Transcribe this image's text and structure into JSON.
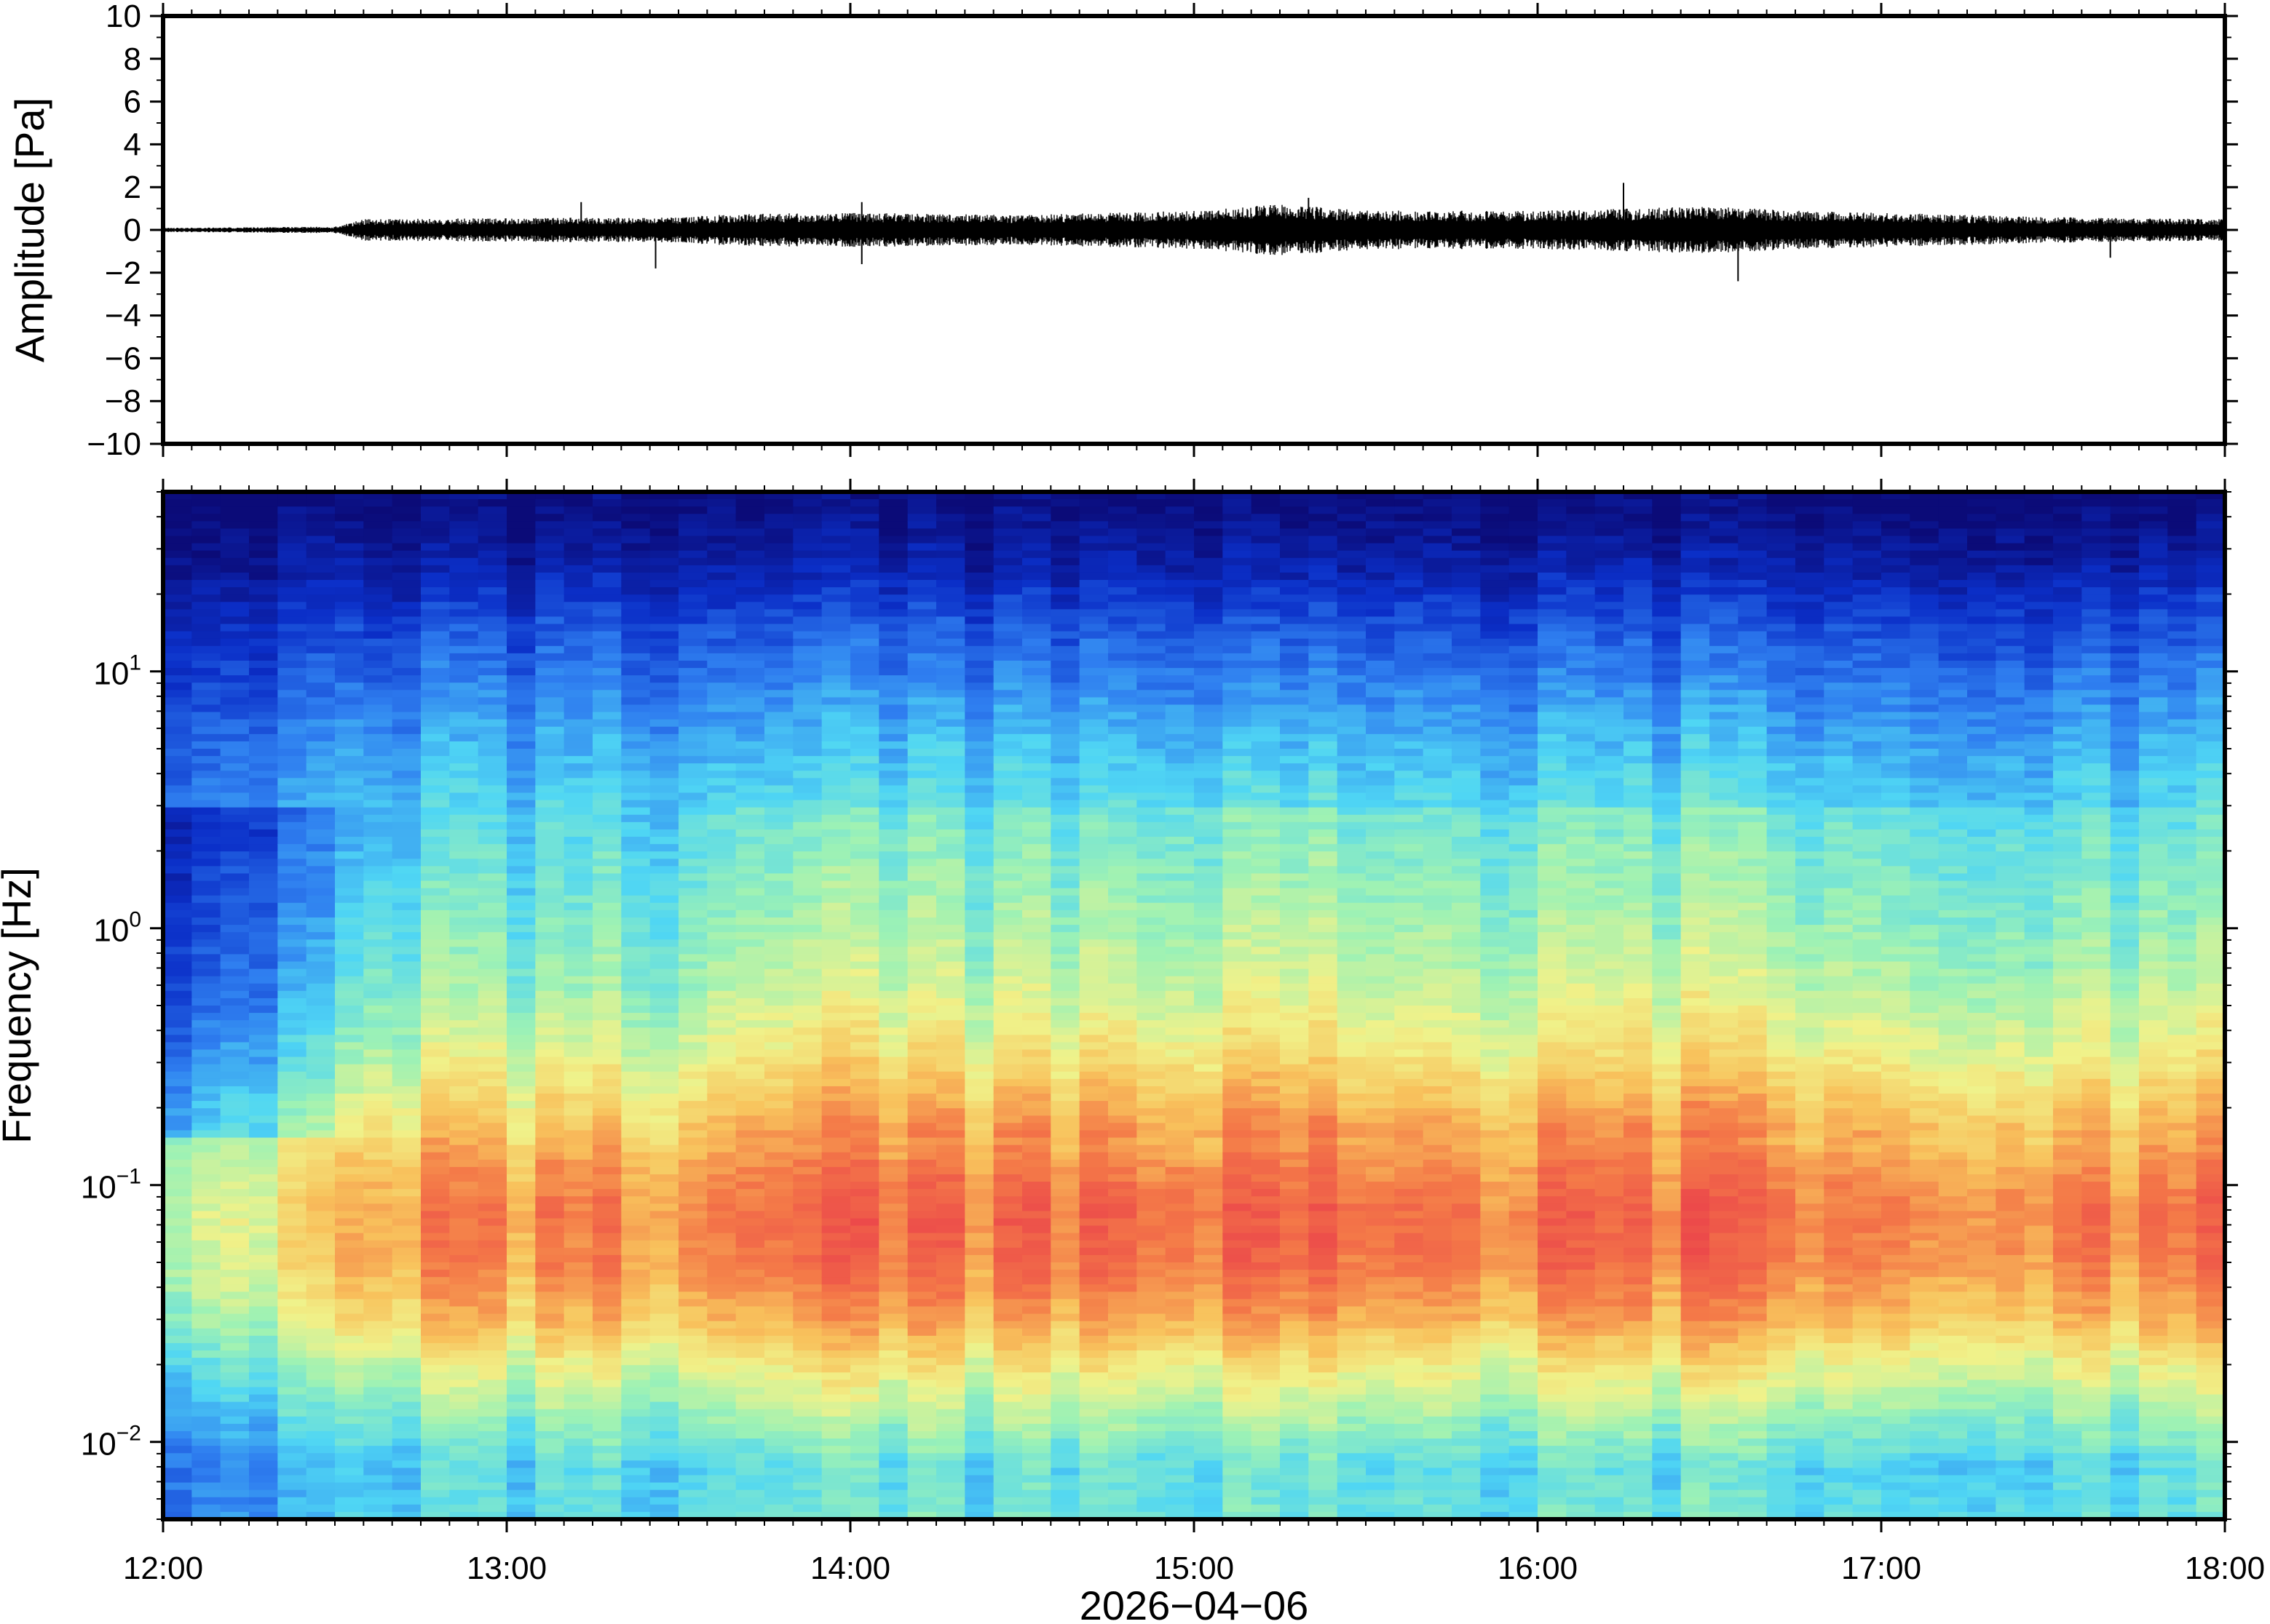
{
  "chart_data": [
    {
      "type": "line",
      "panel": "waveform",
      "ylabel": "Amplitude [Pa]",
      "xlabel": "",
      "ylim": [
        -10,
        10
      ],
      "yticks": [
        "10",
        "8",
        "6",
        "4",
        "2",
        "0",
        "−2",
        "−4",
        "−6",
        "−8",
        "−10"
      ],
      "yticks_values": [
        10,
        8,
        6,
        4,
        2,
        0,
        -2,
        -4,
        -6,
        -8,
        -10
      ],
      "xlim": [
        "12:00",
        "18:00"
      ],
      "series": [
        {
          "color": "#000000",
          "envelope": {
            "time": [
              "12:00",
              "12:30",
              "12:35",
              "13:00",
              "13:30",
              "13:40",
              "14:00",
              "14:30",
              "15:00",
              "15:15",
              "15:30",
              "16:00",
              "16:15",
              "16:30",
              "16:45",
              "17:00",
              "17:30",
              "18:00"
            ],
            "half_range": [
              0.1,
              0.15,
              0.5,
              0.55,
              0.6,
              0.75,
              0.8,
              0.7,
              0.9,
              1.2,
              0.9,
              0.9,
              1.0,
              1.1,
              0.9,
              0.8,
              0.6,
              0.5
            ]
          },
          "spikes": [
            {
              "time": "13:13",
              "value": 1.3
            },
            {
              "time": "13:26",
              "value": -1.8
            },
            {
              "time": "14:02",
              "value": 1.3
            },
            {
              "time": "14:02",
              "value": -1.6
            },
            {
              "time": "15:20",
              "value": 1.5
            },
            {
              "time": "16:15",
              "value": 2.2
            },
            {
              "time": "16:35",
              "value": -2.4
            },
            {
              "time": "17:40",
              "value": -1.3
            }
          ]
        }
      ]
    },
    {
      "type": "heatmap",
      "panel": "spectrogram",
      "ylabel": "Frequency [Hz]",
      "xlabel": "2026−04−06",
      "yscale": "log",
      "ylim": [
        0.005,
        50
      ],
      "ytick_labels": [
        {
          "base": "10",
          "exp": "1",
          "value": 10
        },
        {
          "base": "10",
          "exp": "0",
          "value": 1
        },
        {
          "base": "10",
          "exp": "−1",
          "value": 0.1
        },
        {
          "base": "10",
          "exp": "−2",
          "value": 0.01
        }
      ],
      "xlim": [
        "12:00",
        "18:00"
      ],
      "xticks": [
        "12:00",
        "13:00",
        "14:00",
        "15:00",
        "16:00",
        "17:00",
        "18:00"
      ],
      "colormap": "jet",
      "colormap_colors": [
        "#0b0b78",
        "#0b2fc8",
        "#2f7ff0",
        "#4fd6f4",
        "#9ef2b4",
        "#f0f28a",
        "#f8c25c",
        "#f47a48",
        "#ec4a4a"
      ],
      "level_profile": {
        "frequency_hz": [
          0.005,
          0.008,
          0.012,
          0.02,
          0.03,
          0.05,
          0.08,
          0.12,
          0.2,
          0.35,
          0.6,
          1.0,
          2.0,
          4.0,
          8.0,
          15.0,
          25.0,
          40.0,
          50.0
        ],
        "level": [
          0.42,
          0.4,
          0.5,
          0.64,
          0.78,
          0.88,
          0.9,
          0.84,
          0.72,
          0.6,
          0.52,
          0.47,
          0.42,
          0.36,
          0.27,
          0.18,
          0.08,
          0.02,
          0.0
        ]
      },
      "time_activity": {
        "time": [
          "12:00",
          "12:15",
          "12:30",
          "12:35",
          "13:00",
          "13:30",
          "13:40",
          "14:00",
          "14:30",
          "15:00",
          "15:15",
          "15:30",
          "16:00",
          "16:15",
          "16:30",
          "17:00",
          "17:30",
          "18:00"
        ],
        "activity": [
          0.25,
          0.4,
          0.5,
          0.85,
          0.85,
          0.85,
          1.0,
          1.0,
          0.97,
          1.0,
          1.08,
          1.0,
          1.0,
          1.03,
          1.04,
          1.0,
          0.96,
          0.94
        ]
      }
    }
  ]
}
